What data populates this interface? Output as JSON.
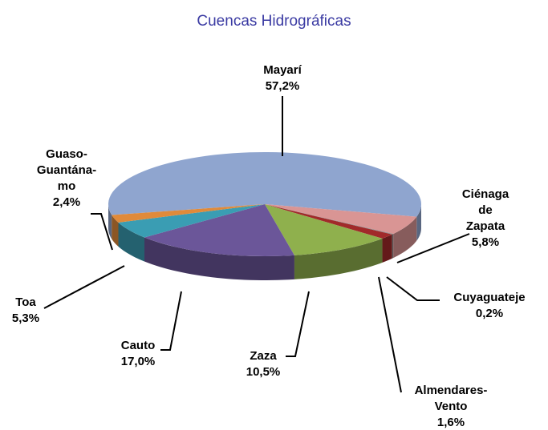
{
  "chart_data": {
    "type": "pie",
    "title": "Cuencas Hidrográficas",
    "categories": [
      "Mayarí",
      "Ciénaga de\nZapata",
      "Cuyaguateje",
      "Almendares-\nVento",
      "Zaza",
      "Cauto",
      "Toa",
      "Guaso-\nGuantána-\nmo"
    ],
    "values": [
      57.2,
      5.8,
      0.2,
      1.6,
      10.5,
      17.0,
      5.3,
      2.4
    ],
    "value_labels": [
      "57,2%",
      "5,8%",
      "0,2%",
      "1,6%",
      "10,5%",
      "17,0%",
      "5,3%",
      "2,4%"
    ],
    "colors": [
      "#8fa5cf",
      "#d99594",
      "#8c8c8c",
      "#a12a2a",
      "#8fb04d",
      "#6b5699",
      "#3a9db3",
      "#e08a3a"
    ]
  }
}
